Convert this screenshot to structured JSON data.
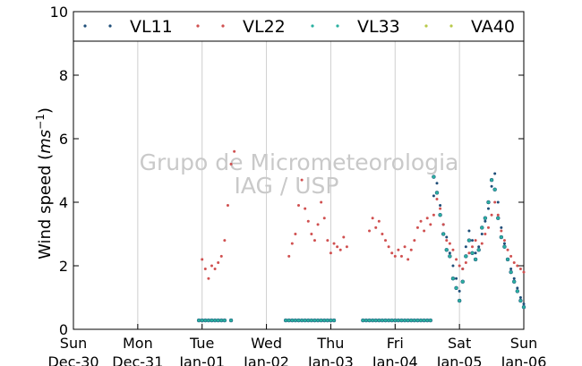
{
  "chart_data": {
    "type": "scatter",
    "ylabel_prefix": "Wind speed (",
    "ylabel_unit_base": "ms",
    "ylabel_unit_exp": "−1",
    "ylabel_suffix": ")",
    "xlabel": "",
    "ylim": [
      0,
      10
    ],
    "yticks": [
      "0",
      "2",
      "4",
      "6",
      "8",
      "10"
    ],
    "x_unit": "days from Dec-30 00:00",
    "xlim": [
      0,
      7
    ],
    "grid": "vertical-only",
    "legend_position": "top",
    "xticks": [
      {
        "day": "Sun",
        "date": "Dec-30"
      },
      {
        "day": "Mon",
        "date": "Dec-31"
      },
      {
        "day": "Tue",
        "date": "Jan-01"
      },
      {
        "day": "Wed",
        "date": "Jan-02"
      },
      {
        "day": "Thu",
        "date": "Jan-03"
      },
      {
        "day": "Fri",
        "date": "Jan-04"
      },
      {
        "day": "Sat",
        "date": "Jan-05"
      },
      {
        "day": "Sun",
        "date": "Jan-06"
      }
    ],
    "watermark": [
      "Grupo de Micrometeorologia",
      "IAG / USP"
    ],
    "series": [
      {
        "name": "VL11",
        "color": "#1f4e79",
        "x": [
          5.6,
          5.65,
          5.7,
          5.75,
          5.8,
          5.85,
          5.9,
          5.95,
          6.0,
          6.05,
          6.1,
          6.15,
          6.2,
          6.25,
          6.3,
          6.35,
          6.4,
          6.45,
          6.5,
          6.55,
          6.6,
          6.65,
          6.7,
          6.75,
          6.8,
          6.85,
          6.9,
          6.95,
          7.0
        ],
        "y": [
          4.2,
          4.6,
          3.9,
          3.3,
          2.9,
          2.4,
          2.0,
          1.6,
          1.2,
          1.9,
          2.6,
          3.1,
          2.8,
          2.4,
          2.6,
          3.0,
          3.4,
          3.8,
          4.5,
          4.9,
          4.0,
          3.2,
          2.7,
          2.2,
          1.9,
          1.6,
          1.3,
          1.0,
          0.8
        ]
      },
      {
        "name": "VL22",
        "color": "#d05050",
        "x": [
          2.0,
          2.05,
          2.1,
          2.15,
          2.2,
          2.25,
          2.3,
          2.35,
          2.4,
          2.45,
          2.5,
          3.35,
          3.4,
          3.45,
          3.5,
          3.55,
          3.6,
          3.65,
          3.7,
          3.75,
          3.8,
          3.85,
          3.9,
          3.95,
          4.0,
          4.05,
          4.1,
          4.15,
          4.2,
          4.25,
          4.6,
          4.65,
          4.7,
          4.75,
          4.8,
          4.85,
          4.9,
          4.95,
          5.0,
          5.05,
          5.1,
          5.15,
          5.2,
          5.25,
          5.3,
          5.35,
          5.4,
          5.45,
          5.5,
          5.55,
          5.6,
          5.65,
          5.7,
          5.75,
          5.8,
          5.85,
          5.9,
          5.95,
          6.0,
          6.05,
          6.1,
          6.15,
          6.2,
          6.25,
          6.3,
          6.35,
          6.4,
          6.45,
          6.5,
          6.55,
          6.6,
          6.65,
          6.7,
          6.75,
          6.8,
          6.85,
          6.9,
          6.95,
          7.0
        ],
        "y": [
          2.2,
          1.9,
          1.6,
          2.0,
          1.9,
          2.1,
          2.3,
          2.8,
          3.9,
          5.2,
          5.6,
          2.3,
          2.7,
          3.0,
          3.9,
          4.7,
          3.8,
          3.4,
          3.0,
          2.8,
          3.3,
          4.0,
          3.5,
          2.8,
          2.4,
          2.7,
          2.6,
          2.5,
          2.9,
          2.6,
          3.1,
          3.5,
          3.2,
          3.4,
          3.0,
          2.8,
          2.6,
          2.4,
          2.3,
          2.5,
          2.3,
          2.6,
          2.2,
          2.5,
          2.8,
          3.2,
          3.4,
          3.1,
          3.5,
          3.3,
          3.6,
          4.1,
          3.8,
          3.3,
          2.8,
          2.7,
          2.5,
          2.2,
          2.0,
          1.9,
          2.1,
          2.4,
          2.6,
          2.8,
          2.5,
          2.7,
          3.0,
          3.2,
          3.6,
          4.0,
          3.6,
          3.1,
          2.8,
          2.5,
          2.3,
          2.1,
          2.0,
          1.9,
          1.8
        ]
      },
      {
        "name": "VL33",
        "color": "#2ab0a0",
        "x": [
          1.95,
          2.0,
          2.05,
          2.1,
          2.15,
          2.2,
          2.25,
          2.3,
          2.35,
          2.45,
          3.3,
          3.35,
          3.4,
          3.45,
          3.5,
          3.55,
          3.6,
          3.65,
          3.7,
          3.75,
          3.8,
          3.85,
          3.9,
          3.95,
          4.0,
          4.05,
          4.5,
          4.55,
          4.6,
          4.65,
          4.7,
          4.75,
          4.8,
          4.85,
          4.9,
          4.95,
          5.0,
          5.05,
          5.1,
          5.15,
          5.2,
          5.25,
          5.3,
          5.35,
          5.4,
          5.45,
          5.5,
          5.55,
          5.6,
          5.65,
          5.7,
          5.75,
          5.8,
          5.85,
          5.9,
          5.95,
          6.0,
          6.05,
          6.1,
          6.15,
          6.2,
          6.25,
          6.3,
          6.35,
          6.4,
          6.45,
          6.5,
          6.55,
          6.6,
          6.65,
          6.7,
          6.75,
          6.8,
          6.85,
          6.9,
          6.95,
          7.0
        ],
        "y": [
          0.28,
          0.28,
          0.28,
          0.28,
          0.28,
          0.28,
          0.28,
          0.28,
          0.28,
          0.28,
          0.28,
          0.28,
          0.28,
          0.28,
          0.28,
          0.28,
          0.28,
          0.28,
          0.28,
          0.28,
          0.28,
          0.28,
          0.28,
          0.28,
          0.28,
          0.28,
          0.28,
          0.28,
          0.28,
          0.28,
          0.28,
          0.28,
          0.28,
          0.28,
          0.28,
          0.28,
          0.28,
          0.28,
          0.28,
          0.28,
          0.28,
          0.28,
          0.28,
          0.28,
          0.28,
          0.28,
          0.28,
          0.28,
          4.8,
          4.3,
          3.6,
          3.0,
          2.5,
          2.3,
          1.6,
          1.3,
          0.9,
          1.5,
          2.3,
          2.8,
          2.4,
          2.2,
          2.5,
          3.2,
          3.5,
          4.0,
          4.7,
          4.4,
          3.5,
          2.9,
          2.6,
          2.2,
          1.8,
          1.5,
          1.2,
          0.9,
          0.7
        ]
      },
      {
        "name": "VA40",
        "color": "#b8c94a",
        "x": [],
        "y": []
      }
    ]
  }
}
